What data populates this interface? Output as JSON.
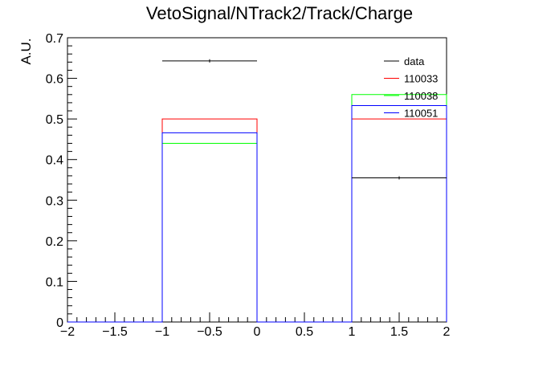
{
  "chart_data": {
    "type": "histogram",
    "title": "VetoSignal/NTrack2/Track/Charge",
    "xlabel": "",
    "ylabel": "A.U.",
    "xlim": [
      -2,
      2
    ],
    "ylim": [
      0,
      0.7
    ],
    "x_ticks": [
      -2,
      -1.5,
      -1,
      -0.5,
      0,
      0.5,
      1,
      1.5,
      2
    ],
    "x_tick_labels": [
      "−2",
      "−1.5",
      "−1",
      "−0.5",
      "0",
      "0.5",
      "1",
      "1.5",
      "2"
    ],
    "y_ticks": [
      0,
      0.1,
      0.2,
      0.3,
      0.4,
      0.5,
      0.6,
      0.7
    ],
    "y_tick_labels": [
      "0",
      "0.1",
      "0.2",
      "0.3",
      "0.4",
      "0.5",
      "0.6",
      "0.7"
    ],
    "bin_edges": [
      -2,
      -1,
      0,
      1,
      2
    ],
    "legend_position": "top-right",
    "grid": false,
    "series": [
      {
        "name": "data",
        "kind": "points",
        "color": "#000000",
        "values": [
          0,
          0.643,
          0,
          0.355
        ],
        "errors": [
          0,
          0.004,
          0,
          0.004
        ]
      },
      {
        "name": "110033",
        "kind": "step",
        "color": "#ff0000",
        "values": [
          0,
          0.5,
          0,
          0.5
        ]
      },
      {
        "name": "110038",
        "kind": "step",
        "color": "#00ff00",
        "values": [
          0,
          0.44,
          0,
          0.56
        ]
      },
      {
        "name": "110051",
        "kind": "step",
        "color": "#0000ff",
        "values": [
          0,
          0.466,
          0,
          0.533
        ]
      }
    ]
  }
}
